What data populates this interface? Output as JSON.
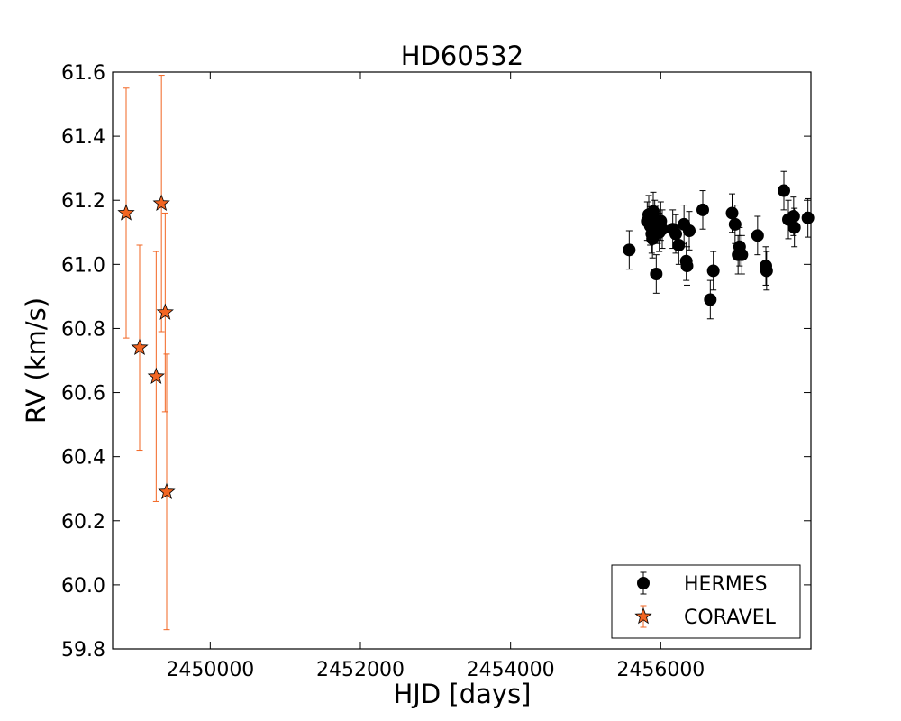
{
  "chart_data": {
    "type": "scatter",
    "title": "HD60532",
    "xlabel": "HJD [days]",
    "ylabel": "RV (km/s)",
    "xlim": [
      2448700,
      2458000
    ],
    "ylim": [
      59.8,
      61.6
    ],
    "xticks": [
      2450000,
      2452000,
      2454000,
      2456000
    ],
    "yticks": [
      59.8,
      60.0,
      60.2,
      60.4,
      60.6,
      60.8,
      61.0,
      61.2,
      61.4,
      61.6
    ],
    "xtick_labels": [
      "2450000",
      "2452000",
      "2454000",
      "2456000"
    ],
    "ytick_labels": [
      "59.8",
      "60.0",
      "60.2",
      "60.4",
      "60.6",
      "60.8",
      "61.0",
      "61.2",
      "61.4",
      "61.6"
    ],
    "grid": false,
    "legend_position": "lower-right",
    "series": [
      {
        "name": "HERMES",
        "marker": "circle",
        "color": "#000000",
        "points": [
          {
            "x": 2455580,
            "y": 61.045,
            "err": 0.06
          },
          {
            "x": 2455820,
            "y": 61.135,
            "err": 0.06
          },
          {
            "x": 2455840,
            "y": 61.155,
            "err": 0.06
          },
          {
            "x": 2455860,
            "y": 61.12,
            "err": 0.06
          },
          {
            "x": 2455880,
            "y": 61.095,
            "err": 0.06
          },
          {
            "x": 2455890,
            "y": 61.08,
            "err": 0.06
          },
          {
            "x": 2455900,
            "y": 61.165,
            "err": 0.06
          },
          {
            "x": 2455920,
            "y": 61.14,
            "err": 0.06
          },
          {
            "x": 2455940,
            "y": 60.97,
            "err": 0.06
          },
          {
            "x": 2455960,
            "y": 61.125,
            "err": 0.06
          },
          {
            "x": 2455980,
            "y": 61.1,
            "err": 0.06
          },
          {
            "x": 2456000,
            "y": 61.135,
            "err": 0.06
          },
          {
            "x": 2456020,
            "y": 61.11,
            "err": 0.06
          },
          {
            "x": 2456160,
            "y": 61.11,
            "err": 0.06
          },
          {
            "x": 2456200,
            "y": 61.095,
            "err": 0.06
          },
          {
            "x": 2456240,
            "y": 61.06,
            "err": 0.06
          },
          {
            "x": 2456310,
            "y": 61.125,
            "err": 0.06
          },
          {
            "x": 2456340,
            "y": 61.01,
            "err": 0.06
          },
          {
            "x": 2456350,
            "y": 60.995,
            "err": 0.06
          },
          {
            "x": 2456380,
            "y": 61.105,
            "err": 0.06
          },
          {
            "x": 2456560,
            "y": 61.17,
            "err": 0.06
          },
          {
            "x": 2456660,
            "y": 60.89,
            "err": 0.06
          },
          {
            "x": 2456700,
            "y": 60.98,
            "err": 0.06
          },
          {
            "x": 2456950,
            "y": 61.16,
            "err": 0.06
          },
          {
            "x": 2456990,
            "y": 61.125,
            "err": 0.06
          },
          {
            "x": 2457030,
            "y": 61.03,
            "err": 0.06
          },
          {
            "x": 2457050,
            "y": 61.055,
            "err": 0.06
          },
          {
            "x": 2457080,
            "y": 61.03,
            "err": 0.06
          },
          {
            "x": 2457290,
            "y": 61.09,
            "err": 0.06
          },
          {
            "x": 2457400,
            "y": 60.995,
            "err": 0.06
          },
          {
            "x": 2457410,
            "y": 60.98,
            "err": 0.06
          },
          {
            "x": 2457640,
            "y": 61.23,
            "err": 0.06
          },
          {
            "x": 2457700,
            "y": 61.14,
            "err": 0.06
          },
          {
            "x": 2457770,
            "y": 61.15,
            "err": 0.06
          },
          {
            "x": 2457780,
            "y": 61.115,
            "err": 0.06
          },
          {
            "x": 2457960,
            "y": 61.145,
            "err": 0.06
          }
        ]
      },
      {
        "name": "CORAVEL",
        "marker": "star",
        "color": "#f26522",
        "points": [
          {
            "x": 2448880,
            "y": 61.16,
            "err": 0.39
          },
          {
            "x": 2449060,
            "y": 60.74,
            "err": 0.32
          },
          {
            "x": 2449280,
            "y": 60.65,
            "err": 0.39
          },
          {
            "x": 2449350,
            "y": 61.19,
            "err": 0.4
          },
          {
            "x": 2449400,
            "y": 60.85,
            "err": 0.31
          },
          {
            "x": 2449420,
            "y": 60.29,
            "err": 0.43
          }
        ]
      }
    ]
  }
}
